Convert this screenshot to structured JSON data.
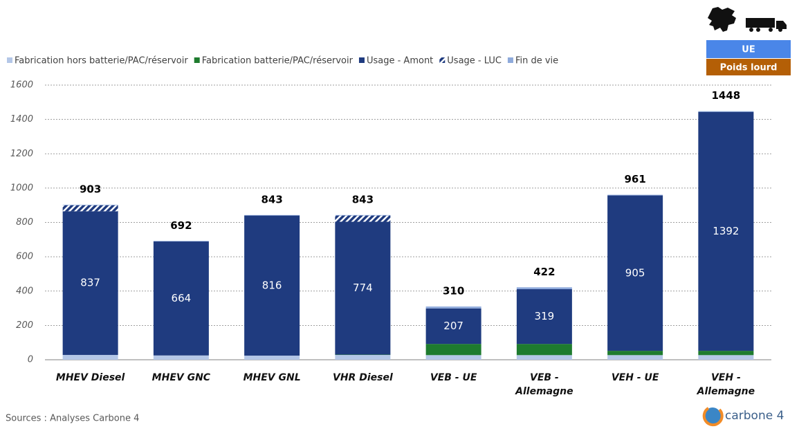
{
  "chart_data": {
    "type": "stacked_bar",
    "categories": [
      "MHEV Diesel",
      "MHEV GNC",
      "MHEV GNL",
      "VHR Diesel",
      "VEB - UE",
      "VEB - Allemagne",
      "VEH - UE",
      "VEH - Allemagne"
    ],
    "series": [
      {
        "name": "Fabrication hors batterie/PAC/réservoir",
        "color": "#b4c7e7",
        "values": [
          28,
          25,
          24,
          28,
          27,
          27,
          27,
          27
        ]
      },
      {
        "name": "Fabrication batterie/PAC/réservoir",
        "color": "#1e7b2e",
        "values": [
          0,
          0,
          0,
          2,
          65,
          65,
          25,
          25
        ]
      },
      {
        "name": "Usage - Amont",
        "color": "#1f3b7f",
        "values": [
          837,
          664,
          816,
          774,
          207,
          319,
          905,
          1392
        ],
        "show_values": true
      },
      {
        "name": "Usage - LUC",
        "color": "#1f3b7f",
        "pattern": "hatch",
        "values": [
          35,
          0,
          0,
          36,
          0,
          0,
          0,
          0
        ]
      },
      {
        "name": "Fin de vie",
        "color": "#8eaadb",
        "values": [
          3,
          3,
          3,
          3,
          11,
          11,
          4,
          4
        ]
      }
    ],
    "totals": [
      903,
      692,
      843,
      843,
      310,
      422,
      961,
      1448
    ],
    "ylim": [
      0,
      1600
    ],
    "yticks": [
      0,
      200,
      400,
      600,
      800,
      1000,
      1200,
      1400,
      1600
    ],
    "grid": true,
    "badge": {
      "region": "UE",
      "segment": "Poids lourd"
    },
    "source": "Sources : Analyses Carbone 4",
    "logo": "carbone 4"
  }
}
